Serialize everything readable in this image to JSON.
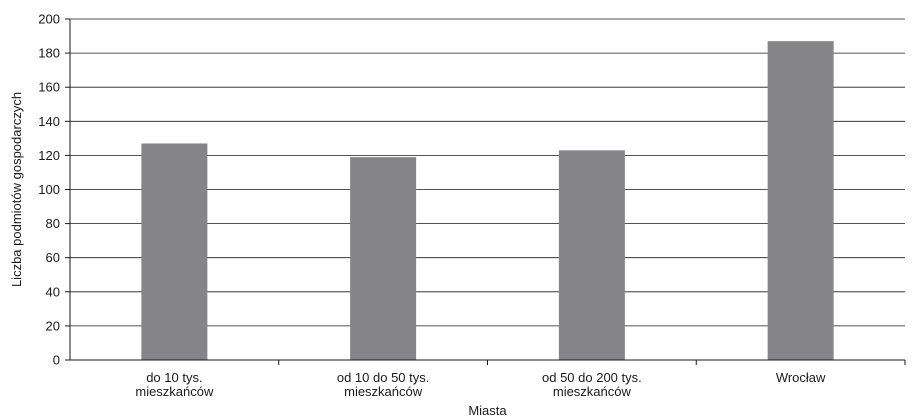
{
  "chart_data": {
    "type": "bar",
    "categories": [
      [
        "do 10 tys.",
        "mieszkańców"
      ],
      [
        "od 10 do 50 tys.",
        "mieszkańców"
      ],
      [
        "od 50 do 200 tys.",
        "mieszkańców"
      ],
      [
        "Wrocław"
      ]
    ],
    "values": [
      127,
      119,
      123,
      187
    ],
    "xlabel": "Miasta",
    "ylabel": "Liczba podmiotów gospodarczych",
    "ylim": [
      0,
      200
    ],
    "yticks": [
      0,
      20,
      40,
      60,
      80,
      100,
      120,
      140,
      160,
      180,
      200
    ],
    "grid": true,
    "legend": "none",
    "bar_color": "#858589",
    "grid_color": "#1a1a1a"
  }
}
